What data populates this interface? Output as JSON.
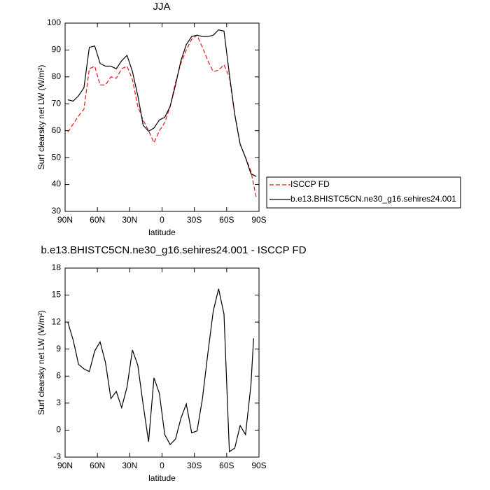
{
  "chart_data": [
    {
      "type": "line",
      "title": "JJA",
      "xlabel": "latitude",
      "ylabel": "Surf clearsky net LW (W/m²)",
      "x": [
        87.5,
        82.5,
        77.5,
        72.5,
        67.5,
        62.5,
        57.5,
        52.5,
        47.5,
        42.5,
        37.5,
        32.5,
        27.5,
        22.5,
        17.5,
        12.5,
        7.5,
        2.5,
        -2.5,
        -7.5,
        -12.5,
        -17.5,
        -22.5,
        -27.5,
        -32.5,
        -37.5,
        -42.5,
        -47.5,
        -52.5,
        -57.5,
        -62.5,
        -67.5,
        -72.5,
        -77.5,
        -82.5,
        -87.5
      ],
      "series": [
        {
          "name": "ISCCP FD",
          "color": "#e8141a",
          "dashed": true,
          "values": [
            59.5,
            62.5,
            65.5,
            68,
            83,
            84,
            77,
            77,
            80,
            79.5,
            83,
            84,
            79,
            69,
            64,
            60,
            55.5,
            60,
            63,
            69,
            78,
            85,
            90,
            94,
            95.5,
            91,
            86,
            82,
            82.5,
            84.5,
            80,
            66,
            55,
            50,
            45,
            35
          ]
        },
        {
          "name": "b.e13.BHISTC5CN.ne30_g16.sehires24.001",
          "color": "#000000",
          "dashed": false,
          "values": [
            71.5,
            71,
            73,
            76,
            91,
            91.5,
            85,
            84,
            84,
            83,
            86,
            88,
            82,
            73,
            62,
            59.8,
            61,
            64,
            65,
            69,
            77,
            86,
            92,
            95,
            95.5,
            95,
            95,
            95.5,
            97.5,
            97,
            81,
            66,
            55,
            50,
            44,
            43
          ]
        }
      ],
      "xlim": [
        90,
        -90
      ],
      "xticks": [
        {
          "value": 90,
          "label": "90N"
        },
        {
          "value": 60,
          "label": "60N"
        },
        {
          "value": 30,
          "label": "30N"
        },
        0,
        {
          "value": -30,
          "label": "30S"
        },
        {
          "value": -60,
          "label": "60S"
        },
        {
          "value": -90,
          "label": "90S"
        }
      ],
      "ylim": [
        30,
        100
      ],
      "yticks": [
        30,
        40,
        50,
        60,
        70,
        80,
        90,
        100
      ],
      "legend": "right"
    },
    {
      "type": "line",
      "title": "b.e13.BHISTC5CN.ne30_g16.sehires24.001 - ISCCP FD",
      "xlabel": "latitude",
      "ylabel": "Surf clearsky net LW (W/m²)",
      "x": [
        87.5,
        82.5,
        77.5,
        72.5,
        67.5,
        62.5,
        57.5,
        52.5,
        47.5,
        42.5,
        37.5,
        32.5,
        27.5,
        22.5,
        17.5,
        12.5,
        7.5,
        2.5,
        -2.5,
        -7.5,
        -12.5,
        -17.5,
        -22.5,
        -27.5,
        -32.5,
        -37.5,
        -42.5,
        -47.5,
        -52.5,
        -57.5,
        -62.5,
        -67.5,
        -72.5,
        -77.5,
        -82.5,
        -85
      ],
      "series": [
        {
          "color": "#000000",
          "dashed": false,
          "values": [
            12,
            10,
            7.3,
            6.8,
            6.5,
            8.8,
            9.8,
            7.5,
            3.5,
            4.3,
            2.5,
            4.8,
            8.9,
            7.2,
            2.8,
            -1.3,
            5.8,
            4.1,
            -0.5,
            -1.6,
            -1,
            1.3,
            2.9,
            -0.3,
            -0.1,
            3.5,
            8.5,
            13.2,
            15.7,
            12.9,
            -2.4,
            -2,
            0.5,
            -0.5,
            5,
            10.2
          ]
        }
      ],
      "xlim": [
        90,
        -90
      ],
      "xticks": [
        {
          "value": 90,
          "label": "90N"
        },
        {
          "value": 60,
          "label": "60N"
        },
        {
          "value": 30,
          "label": "30N"
        },
        0,
        {
          "value": -30,
          "label": "30S"
        },
        {
          "value": -60,
          "label": "60S"
        },
        {
          "value": -90,
          "label": "90S"
        }
      ],
      "ylim": [
        -3,
        18
      ],
      "yticks": [
        -3,
        0,
        3,
        6,
        9,
        12,
        15,
        18
      ]
    }
  ]
}
